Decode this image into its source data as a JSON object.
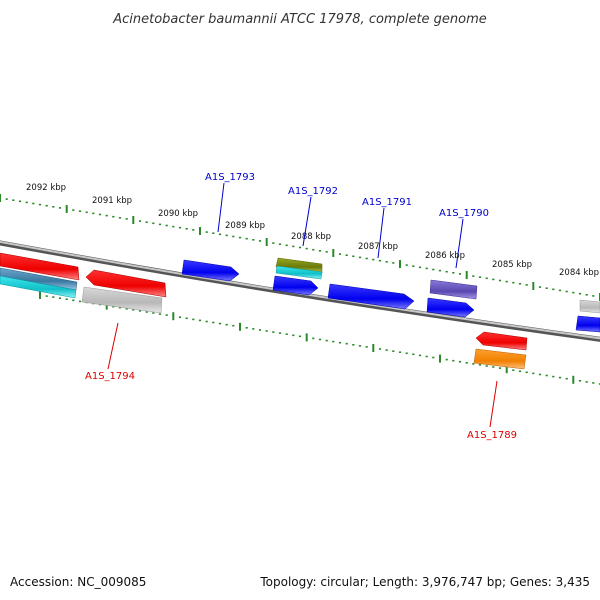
{
  "title": "Acinetobacter baumannii ATCC 17978, complete genome",
  "footer": {
    "accession": "Accession: NC_009085",
    "summary": "Topology: circular; Length: 3,976,747 bp; Genes: 3,435"
  },
  "colors": {
    "forward_label": "#0000cc",
    "reverse_label": "#dd0000",
    "blue": "#0000ff",
    "red": "#ff0000",
    "gray": "#c8c8c8",
    "slate": "#7060c0",
    "olive": "#8a9a10",
    "cyan": "#19d0d8",
    "orange": "#ff9010",
    "steel": "#4a8ab0",
    "tick": "#2a8a2a",
    "backbone": "#888888"
  },
  "ruler_labels": [
    "2092 kbp",
    "2091 kbp",
    "2090 kbp",
    "2089 kbp",
    "2088 kbp",
    "2087 kbp",
    "2086 kbp",
    "2085 kbp",
    "2084 kbp"
  ],
  "gene_labels": {
    "A1S_1793": "A1S_1793",
    "A1S_1792": "A1S_1792",
    "A1S_1791": "A1S_1791",
    "A1S_1790": "A1S_1790",
    "A1S_1794": "A1S_1794",
    "A1S_1789": "A1S_1789"
  }
}
